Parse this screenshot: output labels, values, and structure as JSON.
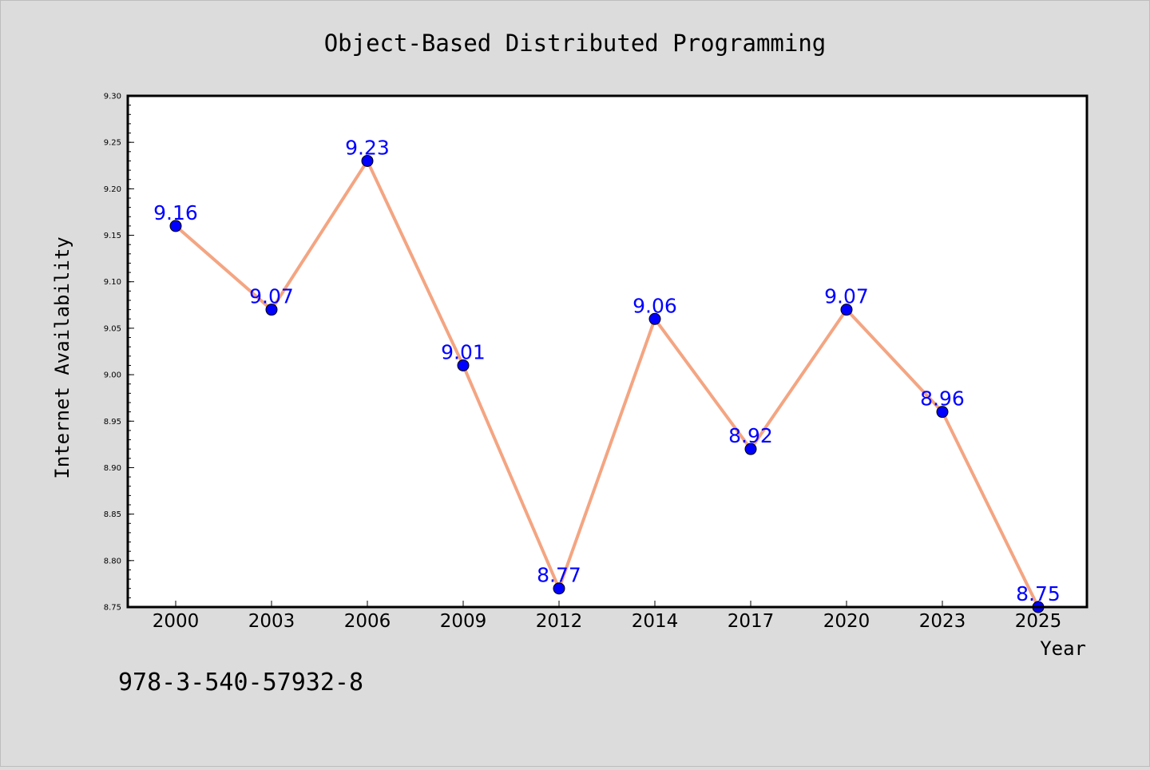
{
  "chart_data": {
    "type": "line",
    "title": "Object-Based Distributed Programming",
    "xlabel": "Year",
    "ylabel": "Internet Availability",
    "categories": [
      "2000",
      "2003",
      "2006",
      "2009",
      "2012",
      "2014",
      "2017",
      "2020",
      "2023",
      "2025"
    ],
    "series": [
      {
        "values": [
          9.16,
          9.07,
          9.23,
          9.01,
          8.77,
          9.06,
          8.92,
          9.07,
          8.96,
          8.75
        ],
        "data_labels": [
          "9.16",
          "9.07",
          "9.23",
          "9.01",
          "8.77",
          "9.06",
          "8.92",
          "9.07",
          "8.96",
          "8.75"
        ]
      }
    ],
    "ylim": [
      8.75,
      9.3
    ],
    "yticks": [
      "8.75",
      "8.80",
      "8.85",
      "8.90",
      "8.95",
      "9.00",
      "9.05",
      "9.10",
      "9.15",
      "9.20",
      "9.25",
      "9.30"
    ],
    "grid": false,
    "legend": "none",
    "colors": {
      "line": "#f4a582",
      "marker": "#0000ff",
      "data_label": "#0000ff",
      "background": "#dcdcdc",
      "plot_background": "#ffffff"
    }
  },
  "footer": {
    "isbn": "978-3-540-57932-8"
  }
}
